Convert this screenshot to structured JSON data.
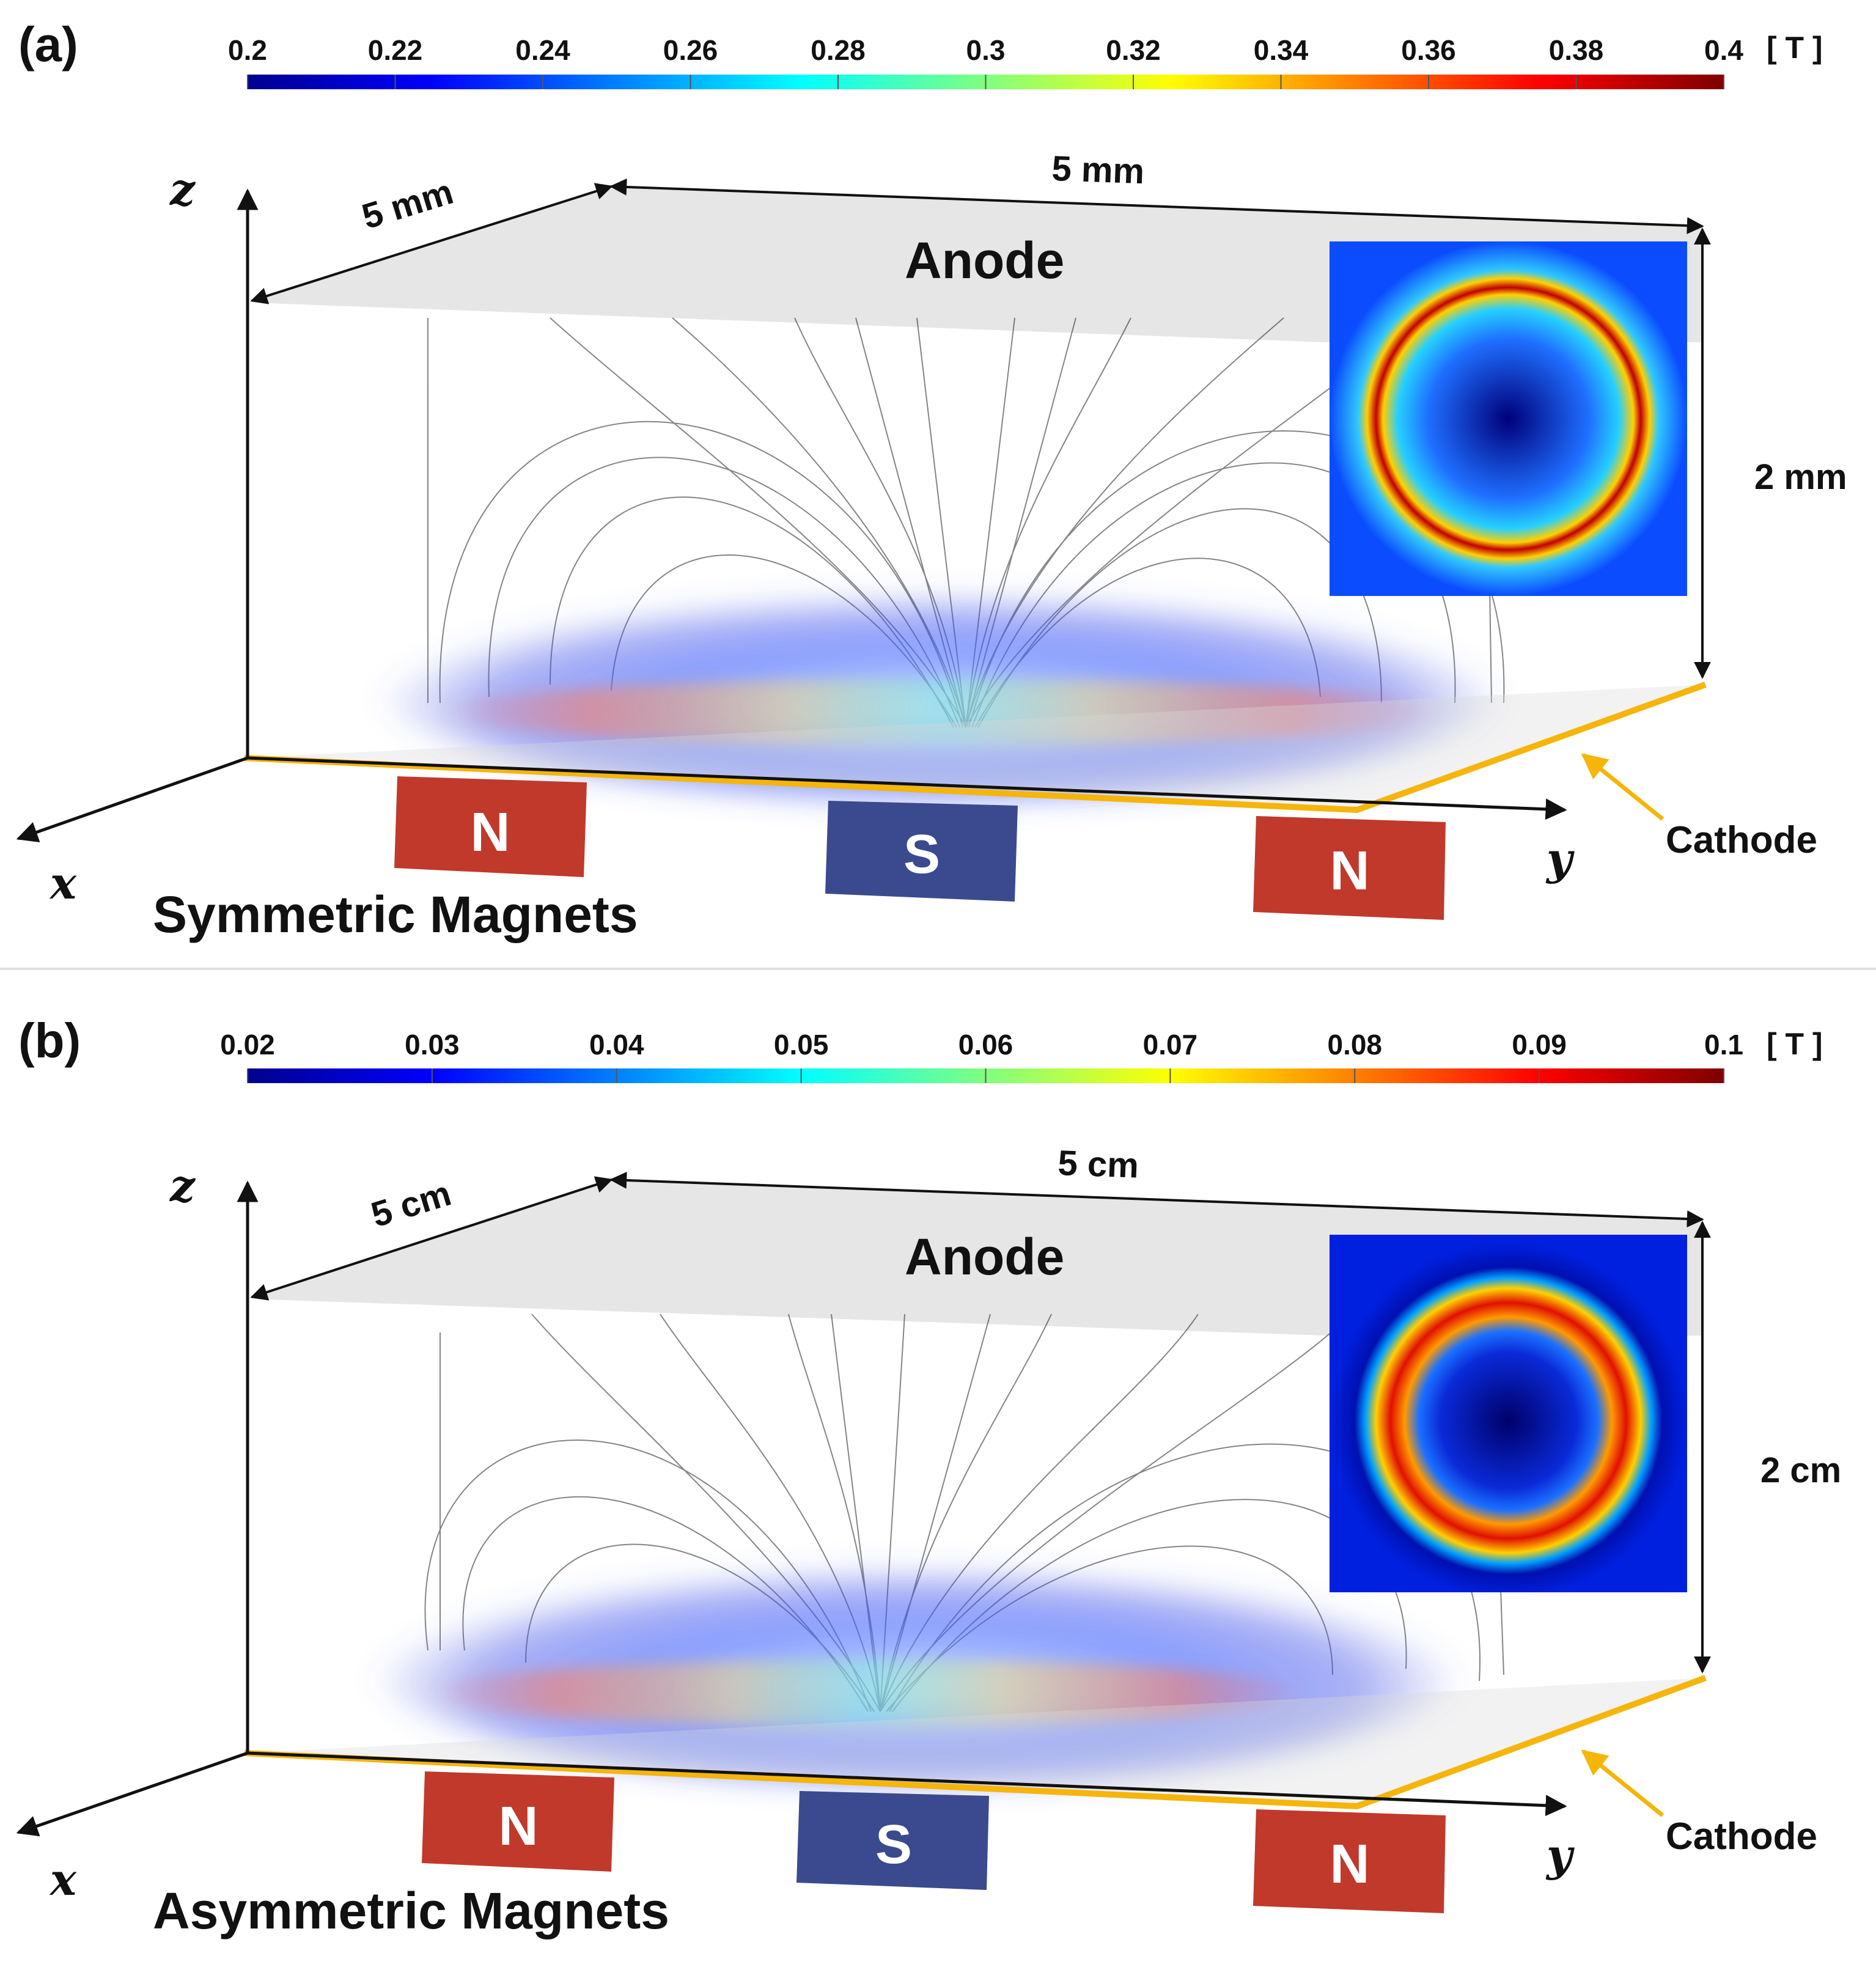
{
  "panels": [
    {
      "panel_label": "(a)",
      "colorbar": {
        "ticks": [
          "0.2",
          "0.22",
          "0.24",
          "0.26",
          "0.28",
          "0.3",
          "0.32",
          "0.34",
          "0.36",
          "0.38",
          "0.4"
        ],
        "unit": "[ T ]"
      },
      "dims": {
        "depth": "5 mm",
        "width": "5 mm",
        "height": "2 mm"
      },
      "anode": "Anode",
      "cathode": "Cathode",
      "axes": {
        "x": "x",
        "y": "y",
        "z": "z"
      },
      "magnets": [
        "N",
        "S",
        "N"
      ],
      "title": "Symmetric Magnets"
    },
    {
      "panel_label": "(b)",
      "colorbar": {
        "ticks": [
          "0.02",
          "0.03",
          "0.04",
          "0.05",
          "0.06",
          "0.07",
          "0.08",
          "0.09",
          "0.1"
        ],
        "unit": "[ T ]"
      },
      "dims": {
        "depth": "5 cm",
        "width": "5 cm",
        "height": "2 cm"
      },
      "anode": "Anode",
      "cathode": "Cathode",
      "axes": {
        "x": "x",
        "y": "y",
        "z": "z"
      },
      "magnets": [
        "N",
        "S",
        "N"
      ],
      "title": "Asymmetric Magnets"
    }
  ],
  "colors": {
    "north": "#c0392b",
    "south": "#3b4a8f",
    "cathode": "#f5b50a",
    "anode": "#e4e4e4"
  }
}
